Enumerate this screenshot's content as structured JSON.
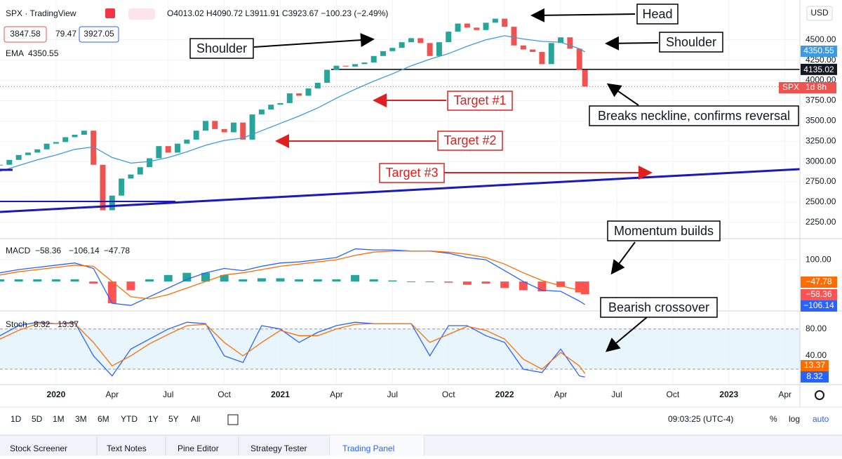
{
  "ui": {
    "symbol": "SPX · TradingView",
    "ohlc": "O4013.02 H4090.72 L3911.91 C3923.67 −100.23 (−2.49%)",
    "bid": "3847.58",
    "spread": "79.47",
    "ask": "3927.05",
    "currency": "USD",
    "last_tag": "SPX",
    "countdown": "1d 8h",
    "intervals": [
      "1D",
      "5D",
      "1M",
      "3M",
      "6M",
      "YTD",
      "1Y",
      "5Y",
      "All"
    ],
    "clock": "09:03:25 (UTC-4)",
    "scale_buttons": [
      "%",
      "log",
      "auto"
    ],
    "tabs": [
      "Stock Screener",
      "Text Notes",
      "Pine Editor",
      "Strategy Tester",
      "Trading Panel"
    ],
    "annotations": {
      "head": "Head",
      "shoulder_left": "Shoulder",
      "shoulder_right": "Shoulder",
      "neckline": "Breaks neckline, confirms reversal",
      "target1": "Target #1",
      "target2": "Target #2",
      "target3": "Target #3",
      "momentum": "Momentum builds",
      "crossover": "Bearish crossover"
    }
  },
  "chart_data": {
    "type": "candlestick",
    "xlim": [
      -3,
      39.8
    ],
    "xticks": [
      {
        "value": 0,
        "label": "2020"
      },
      {
        "value": 3,
        "label": "Apr"
      },
      {
        "value": 6,
        "label": "Jul"
      },
      {
        "value": 9,
        "label": "Oct"
      },
      {
        "value": 12,
        "label": "2021"
      },
      {
        "value": 15,
        "label": "Apr"
      },
      {
        "value": 18,
        "label": "Jul"
      },
      {
        "value": 21,
        "label": "Oct"
      },
      {
        "value": 24,
        "label": "2022"
      },
      {
        "value": 27,
        "label": "Apr"
      },
      {
        "value": 30,
        "label": "Jul"
      },
      {
        "value": 33,
        "label": "Oct"
      },
      {
        "value": 36,
        "label": "2023"
      },
      {
        "value": 39,
        "label": "Apr"
      }
    ],
    "ylim": [
      2050,
      4990
    ],
    "yticks": [
      {
        "value": 4500,
        "label": "4500.00"
      },
      {
        "value": 4250,
        "label": "4250.00"
      },
      {
        "value": 4000,
        "label": "4000.00"
      },
      {
        "value": 3750,
        "label": "3750.00"
      },
      {
        "value": 3500,
        "label": "3500.00"
      },
      {
        "value": 3250,
        "label": "3250.00"
      },
      {
        "value": 3000,
        "label": "3000.00"
      },
      {
        "value": 2750,
        "label": "2750.00"
      },
      {
        "value": 2500,
        "label": "2500.00"
      },
      {
        "value": 2250,
        "label": "2250.00"
      }
    ],
    "grid": true,
    "price": {
      "up_color": "#26a69a",
      "down_color": "#ef5350",
      "x": [
        -3,
        -2.5,
        -2,
        -1.5,
        -1,
        -0.5,
        0,
        0.5,
        1,
        1.5,
        2,
        2.5,
        3,
        3.5,
        4,
        4.5,
        5,
        5.5,
        6,
        6.5,
        7,
        7.5,
        8,
        8.5,
        9,
        9.5,
        10,
        10.5,
        11,
        11.5,
        12,
        12.5,
        13,
        13.5,
        14,
        14.5,
        15,
        15.5,
        16,
        16.5,
        17,
        17.5,
        18,
        18.5,
        19,
        19.5,
        20,
        20.5,
        21,
        21.5,
        22,
        22.5,
        23,
        23.5,
        24,
        24.5,
        25,
        25.5,
        26,
        26.5,
        27,
        27.5,
        28,
        28.3
      ],
      "close": [
        2960,
        3020,
        3080,
        3110,
        3150,
        3220,
        3240,
        3300,
        3330,
        3380,
        2960,
        2400,
        2580,
        2790,
        2840,
        2930,
        3040,
        3190,
        3110,
        3220,
        3270,
        3380,
        3500,
        3400,
        3360,
        3480,
        3270,
        3580,
        3640,
        3700,
        3720,
        3840,
        3810,
        3900,
        3970,
        4130,
        4180,
        4170,
        4200,
        4220,
        4300,
        4360,
        4400,
        4470,
        4520,
        4460,
        4300,
        4470,
        4600,
        4700,
        4650,
        4620,
        4710,
        4760,
        4660,
        4430,
        4380,
        4350,
        4200,
        4460,
        4530,
        4390,
        4130,
        3923.67
      ]
    },
    "ema": {
      "name": "EMA",
      "color": "#3d9ae0",
      "last_label": "4350.55",
      "x": [
        -3,
        -2,
        -1,
        0,
        1,
        2,
        3,
        4,
        5,
        6,
        7,
        8,
        9,
        10,
        11,
        12,
        13,
        14,
        15,
        16,
        17,
        18,
        19,
        20,
        21,
        22,
        23,
        24,
        25,
        26,
        27,
        28,
        28.3
      ],
      "values": [
        2880,
        2950,
        3020,
        3080,
        3150,
        3180,
        3050,
        2980,
        3000,
        3050,
        3120,
        3200,
        3260,
        3290,
        3380,
        3470,
        3560,
        3660,
        3780,
        3890,
        3990,
        4080,
        4180,
        4260,
        4330,
        4420,
        4500,
        4550,
        4510,
        4480,
        4470,
        4390,
        4350.55
      ]
    },
    "neckline": {
      "value": 4135.02,
      "label": "4135.02"
    },
    "macd": {
      "name": "MACD",
      "ylim": [
        -135,
        197
      ],
      "yticks": [
        {
          "value": 100,
          "label": "100.00"
        }
      ],
      "x": [
        -3,
        -2,
        -1,
        0,
        1,
        2,
        3,
        4,
        5,
        6,
        7,
        8,
        9,
        10,
        11,
        12,
        13,
        14,
        15,
        16,
        17,
        18,
        19,
        20,
        21,
        22,
        23,
        24,
        25,
        26,
        27,
        28,
        28.3
      ],
      "hist": [
        10,
        10,
        10,
        10,
        10,
        -10,
        -100,
        -40,
        10,
        30,
        40,
        40,
        30,
        10,
        15,
        15,
        10,
        10,
        10,
        30,
        10,
        5,
        0,
        0,
        -5,
        -15,
        -10,
        -30,
        -40,
        -45,
        -25,
        -50,
        -58.36
      ],
      "macd": [
        40,
        55,
        65,
        75,
        85,
        60,
        -100,
        -110,
        -70,
        -30,
        10,
        40,
        60,
        50,
        70,
        85,
        90,
        100,
        110,
        150,
        145,
        145,
        140,
        140,
        130,
        110,
        100,
        50,
        0,
        -40,
        -45,
        -90,
        -106.14
      ],
      "signal": [
        30,
        45,
        55,
        65,
        75,
        70,
        0,
        -70,
        -80,
        -60,
        -30,
        0,
        30,
        40,
        55,
        70,
        80,
        90,
        100,
        120,
        135,
        140,
        140,
        140,
        135,
        125,
        110,
        80,
        40,
        5,
        -20,
        -40,
        -47.78
      ],
      "hist_colors": [
        "#26a69a",
        "#ff5252"
      ],
      "macd_color": "#2962ff",
      "signal_color": "#ff6d00",
      "last_labels": {
        "hist": "−58.36",
        "macd": "−106.14",
        "signal": "−47.78"
      }
    },
    "stoch": {
      "name": "Stoch",
      "ylim": [
        -3,
        107
      ],
      "yticks": [
        {
          "value": 80,
          "label": "80.00"
        },
        {
          "value": 40,
          "label": "40.00"
        }
      ],
      "band": [
        20,
        80
      ],
      "x": [
        -3,
        -2,
        -1,
        0,
        1,
        2,
        3,
        4,
        5,
        6,
        7,
        8,
        9,
        10,
        11,
        12,
        13,
        14,
        15,
        16,
        17,
        18,
        19,
        20,
        21,
        22,
        23,
        24,
        25,
        26,
        27,
        28,
        28.3
      ],
      "k": [
        70,
        85,
        90,
        88,
        90,
        40,
        10,
        50,
        65,
        80,
        90,
        88,
        40,
        30,
        85,
        80,
        60,
        75,
        85,
        90,
        88,
        88,
        88,
        40,
        85,
        85,
        70,
        60,
        20,
        15,
        50,
        10,
        8.32
      ],
      "d": [
        65,
        78,
        88,
        88,
        88,
        60,
        25,
        40,
        58,
        72,
        85,
        87,
        60,
        40,
        60,
        78,
        70,
        70,
        80,
        87,
        88,
        88,
        88,
        60,
        72,
        84,
        78,
        65,
        35,
        20,
        45,
        25,
        13.37
      ],
      "k_color": "#2962ff",
      "d_color": "#ff6d00",
      "last_labels": {
        "k": "8.32",
        "d": "13.37"
      }
    }
  }
}
